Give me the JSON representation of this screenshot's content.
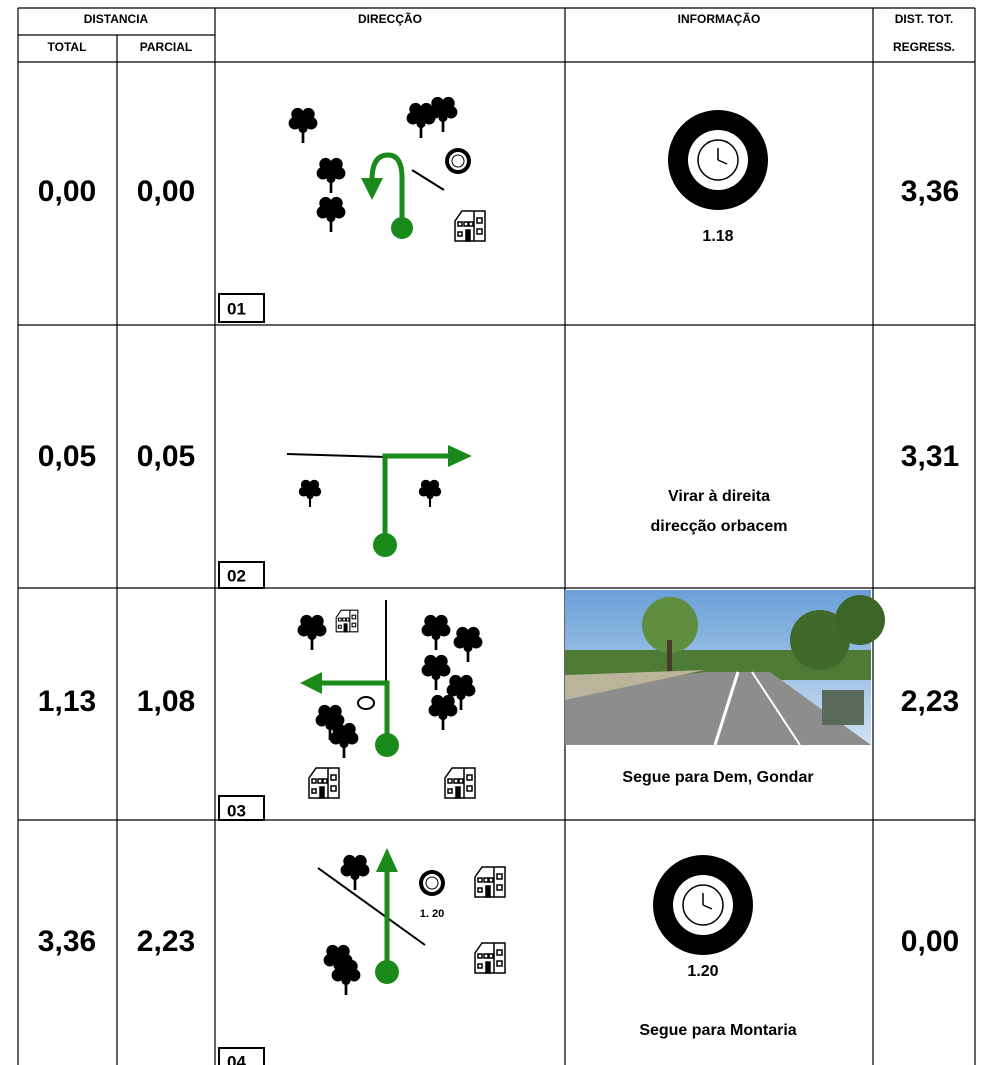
{
  "header": {
    "distance": "DISTANCIA",
    "total": "TOTAL",
    "partial": "PARCIAL",
    "direction": "DIRECÇÃO",
    "information": "INFORMAÇÃO",
    "regress": [
      "DIST. TOT.",
      "REGRESS."
    ]
  },
  "rows": [
    {
      "total": "0,00",
      "partial": "0,00",
      "step": "01",
      "info": [
        "1.18"
      ],
      "regress": "3,36"
    },
    {
      "total": "0,05",
      "partial": "0,05",
      "step": "02",
      "info": [
        "Virar à direita",
        "direcção orbacem"
      ],
      "regress": "3,31"
    },
    {
      "total": "1,13",
      "partial": "1,08",
      "step": "03",
      "info": [
        "Segue para Dem, Gondar"
      ],
      "regress": "2,23"
    },
    {
      "total": "3,36",
      "partial": "2,23",
      "step": "04",
      "diagram_label": "1. 20",
      "info": [
        "1.20",
        "Segue para Montaria"
      ],
      "regress": "0,00"
    }
  ]
}
